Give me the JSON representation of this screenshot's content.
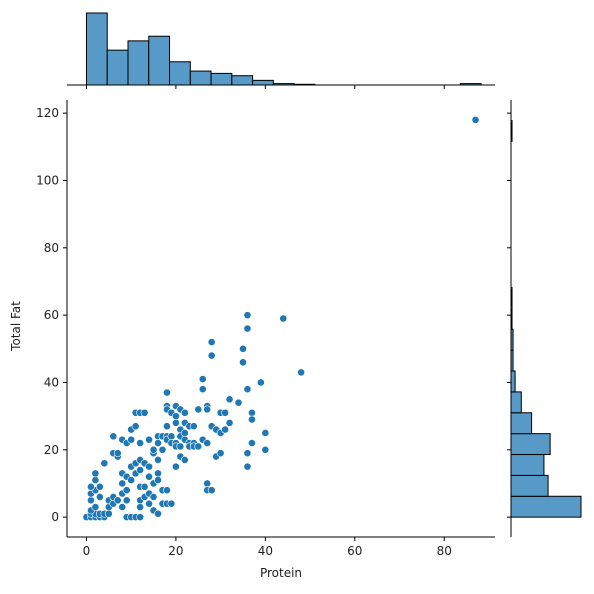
{
  "chart_data": {
    "type": "scatter",
    "title": "",
    "xlabel": "Protein",
    "ylabel": "Total Fat",
    "xlim": [
      -4.35,
      91.35
    ],
    "ylim": [
      -5.9,
      123.9
    ],
    "xticks": [
      0,
      20,
      40,
      60,
      80
    ],
    "yticks": [
      0,
      20,
      40,
      60,
      80,
      100,
      120
    ],
    "point_color": "#1f77b4",
    "hist_color": "#5799c7",
    "grid": false,
    "points": [
      [
        0,
        0
      ],
      [
        1,
        0
      ],
      [
        2,
        0
      ],
      [
        3,
        0
      ],
      [
        4,
        0
      ],
      [
        1,
        1
      ],
      [
        2,
        1
      ],
      [
        3,
        1
      ],
      [
        4,
        1
      ],
      [
        5,
        1
      ],
      [
        1,
        2
      ],
      [
        2,
        3
      ],
      [
        1,
        5
      ],
      [
        3,
        6
      ],
      [
        1,
        7
      ],
      [
        2,
        8
      ],
      [
        3,
        9
      ],
      [
        1,
        9
      ],
      [
        2,
        11
      ],
      [
        2,
        13
      ],
      [
        4,
        16
      ],
      [
        5,
        3
      ],
      [
        5,
        5
      ],
      [
        6,
        4
      ],
      [
        6,
        6
      ],
      [
        7,
        5
      ],
      [
        8,
        3
      ],
      [
        8,
        7
      ],
      [
        9,
        5
      ],
      [
        9,
        0
      ],
      [
        10,
        0
      ],
      [
        11,
        0
      ],
      [
        12,
        0
      ],
      [
        6,
        19
      ],
      [
        6,
        24
      ],
      [
        7,
        18
      ],
      [
        7,
        19
      ],
      [
        8,
        23
      ],
      [
        8,
        10
      ],
      [
        8,
        13
      ],
      [
        9,
        22
      ],
      [
        9,
        8
      ],
      [
        9,
        12
      ],
      [
        10,
        26
      ],
      [
        10,
        23
      ],
      [
        10,
        15
      ],
      [
        10,
        11
      ],
      [
        11,
        16
      ],
      [
        11,
        13
      ],
      [
        11,
        27
      ],
      [
        11,
        31
      ],
      [
        12,
        31
      ],
      [
        12,
        22
      ],
      [
        12,
        17
      ],
      [
        12,
        14
      ],
      [
        12,
        9
      ],
      [
        12,
        5
      ],
      [
        12,
        3
      ],
      [
        13,
        31
      ],
      [
        13,
        16
      ],
      [
        13,
        9
      ],
      [
        13,
        6
      ],
      [
        14,
        23
      ],
      [
        14,
        15
      ],
      [
        14,
        12
      ],
      [
        14,
        7
      ],
      [
        14,
        4
      ],
      [
        15,
        19
      ],
      [
        15,
        20
      ],
      [
        15,
        10
      ],
      [
        15,
        6
      ],
      [
        15,
        2
      ],
      [
        16,
        24
      ],
      [
        16,
        22
      ],
      [
        16,
        17
      ],
      [
        16,
        13
      ],
      [
        16,
        11
      ],
      [
        16,
        1
      ],
      [
        17,
        24
      ],
      [
        17,
        20
      ],
      [
        17,
        4
      ],
      [
        17,
        8
      ],
      [
        18,
        37
      ],
      [
        18,
        33
      ],
      [
        18,
        32
      ],
      [
        18,
        27
      ],
      [
        18,
        24
      ],
      [
        18,
        23
      ],
      [
        18,
        8
      ],
      [
        18,
        4
      ],
      [
        19,
        31
      ],
      [
        19,
        24
      ],
      [
        19,
        22
      ],
      [
        19,
        4
      ],
      [
        20,
        33
      ],
      [
        20,
        30
      ],
      [
        20,
        28
      ],
      [
        20,
        22
      ],
      [
        20,
        21
      ],
      [
        20,
        15
      ],
      [
        21,
        32
      ],
      [
        21,
        26
      ],
      [
        21,
        24
      ],
      [
        21,
        21
      ],
      [
        21,
        18
      ],
      [
        22,
        31
      ],
      [
        22,
        28
      ],
      [
        22,
        25
      ],
      [
        22,
        23
      ],
      [
        22,
        17
      ],
      [
        23,
        27
      ],
      [
        23,
        22
      ],
      [
        23,
        21
      ],
      [
        24,
        27
      ],
      [
        24,
        22
      ],
      [
        24,
        21
      ],
      [
        25,
        32
      ],
      [
        25,
        21
      ],
      [
        26,
        41
      ],
      [
        26,
        38
      ],
      [
        26,
        23
      ],
      [
        27,
        33
      ],
      [
        27,
        32
      ],
      [
        27,
        22
      ],
      [
        27,
        10
      ],
      [
        27,
        8
      ],
      [
        28,
        52
      ],
      [
        28,
        48
      ],
      [
        28,
        27
      ],
      [
        28,
        8
      ],
      [
        29,
        26
      ],
      [
        29,
        18
      ],
      [
        30,
        31
      ],
      [
        30,
        25
      ],
      [
        30,
        19
      ],
      [
        31,
        31
      ],
      [
        31,
        26
      ],
      [
        32,
        35
      ],
      [
        32,
        28
      ],
      [
        34,
        34
      ],
      [
        35,
        50
      ],
      [
        35,
        46
      ],
      [
        36,
        60
      ],
      [
        36,
        56
      ],
      [
        36,
        38
      ],
      [
        36,
        19
      ],
      [
        36,
        15
      ],
      [
        37,
        31
      ],
      [
        37,
        29
      ],
      [
        37,
        22
      ],
      [
        39,
        40
      ],
      [
        40,
        25
      ],
      [
        40,
        20
      ],
      [
        44,
        59
      ],
      [
        48,
        43
      ],
      [
        87,
        118
      ]
    ],
    "x_hist": {
      "bin_width": 4.644,
      "bin_start": 0,
      "counts": [
        31,
        15,
        19,
        21,
        10,
        6,
        5,
        4,
        2,
        0.6,
        0.3,
        0,
        0,
        0,
        0,
        0,
        0,
        0,
        0.6
      ]
    },
    "y_hist": {
      "bin_width": 6.2,
      "bin_start": 0,
      "counts": [
        34,
        18,
        16,
        19,
        10,
        5,
        2,
        1,
        1,
        0.5,
        0.5,
        0,
        0,
        0,
        0,
        0,
        0,
        0,
        0.5
      ]
    }
  }
}
